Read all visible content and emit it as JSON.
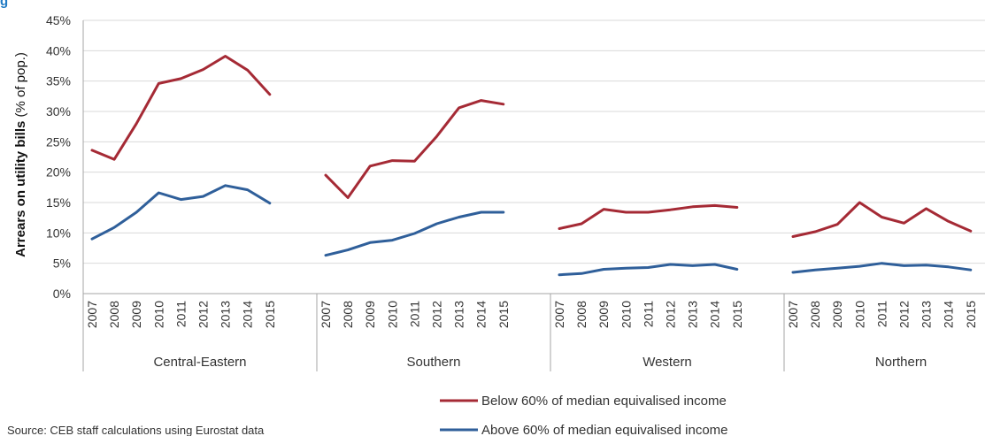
{
  "chart_data": {
    "type": "line",
    "title": "",
    "ylabel_bold": "Arrears on utility bills",
    "ylabel_rest": " (% of pop.)",
    "ylim": [
      0,
      45
    ],
    "y_ticks": [
      0,
      5,
      10,
      15,
      20,
      25,
      30,
      35,
      40,
      45
    ],
    "y_tick_suffix": "%",
    "grid": true,
    "legend_position": "bottom-right",
    "groups": [
      {
        "name": "Central-Eastern",
        "x": [
          "2007",
          "2008",
          "2009",
          "2010",
          "2011",
          "2012",
          "2013",
          "2014",
          "2015"
        ],
        "series": [
          {
            "name": "Below 60% of median equivalised income",
            "values": [
              23.6,
              22.1,
              28.0,
              34.6,
              35.4,
              36.9,
              39.1,
              36.8,
              32.8
            ]
          },
          {
            "name": "Above 60% of median equivalised income",
            "values": [
              9.0,
              10.9,
              13.4,
              16.6,
              15.5,
              16.0,
              17.8,
              17.1,
              14.9
            ]
          }
        ]
      },
      {
        "name": "Southern",
        "x": [
          "2007",
          "2008",
          "2009",
          "2010",
          "2011",
          "2012",
          "2013",
          "2014",
          "2015"
        ],
        "series": [
          {
            "name": "Below 60% of median equivalised income",
            "values": [
              19.5,
              15.8,
              21.0,
              21.9,
              21.8,
              25.9,
              30.6,
              31.8,
              31.2
            ]
          },
          {
            "name": "Above 60% of median equivalised income",
            "values": [
              6.3,
              7.2,
              8.4,
              8.8,
              9.9,
              11.5,
              12.6,
              13.4,
              13.4
            ]
          }
        ]
      },
      {
        "name": "Western",
        "x": [
          "2007",
          "2008",
          "2009",
          "2010",
          "2011",
          "2012",
          "2013",
          "2014",
          "2015"
        ],
        "series": [
          {
            "name": "Below 60% of median equivalised income",
            "values": [
              10.7,
              11.5,
              13.9,
              13.4,
              13.4,
              13.8,
              14.3,
              14.5,
              14.2
            ]
          },
          {
            "name": "Above 60% of median equivalised income",
            "values": [
              3.1,
              3.3,
              4.0,
              4.2,
              4.3,
              4.8,
              4.6,
              4.8,
              4.0
            ]
          }
        ]
      },
      {
        "name": "Northern",
        "x": [
          "2007",
          "2008",
          "2009",
          "2010",
          "2011",
          "2012",
          "2013",
          "2014",
          "2015"
        ],
        "series": [
          {
            "name": "Below 60% of median equivalised income",
            "values": [
              9.4,
              10.2,
              11.4,
              15.0,
              12.6,
              11.6,
              14.0,
              11.9,
              10.3
            ]
          },
          {
            "name": "Above 60% of median equivalised income",
            "values": [
              3.5,
              3.9,
              4.2,
              4.5,
              5.0,
              4.6,
              4.7,
              4.4,
              3.9
            ]
          }
        ]
      }
    ],
    "series_colors": {
      "Below 60% of median equivalised income": "#a52a35",
      "Above 60% of median equivalised income": "#2f5f9a"
    }
  },
  "legend": {
    "below_label": "Below 60% of median equivalised income",
    "above_label": "Above 60% of median equivalised income"
  },
  "source": "Source: CEB staff calculations using Eurostat data",
  "top_caption_fragment": "g",
  "colors": {
    "below": "#a52a35",
    "above": "#2f5f9a",
    "grid": "#d9d9d9",
    "axis": "#a6a6a6",
    "title_blue": "#1f7ac4"
  }
}
